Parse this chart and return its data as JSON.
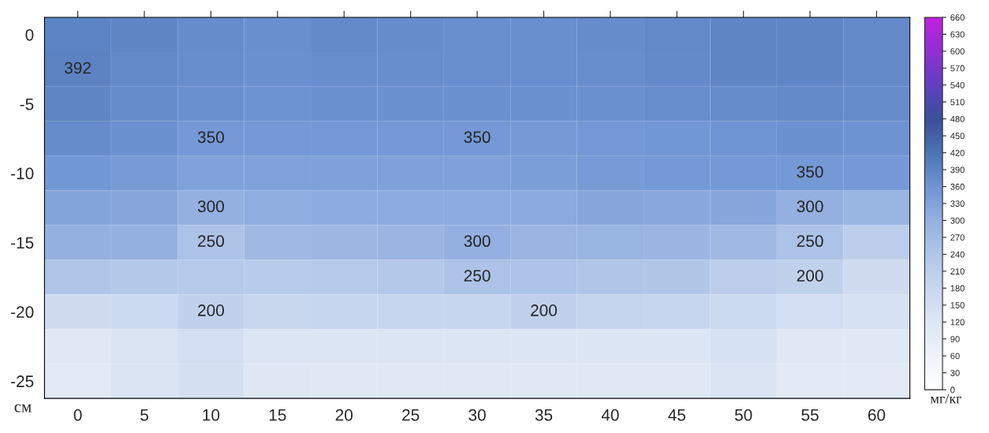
{
  "chart_data": {
    "type": "heatmap",
    "categories": [
      "0",
      "5",
      "10",
      "15",
      "20",
      "25",
      "30",
      "35",
      "40",
      "45",
      "50",
      "55",
      "60"
    ],
    "y_categories": [
      "0",
      null,
      "-5",
      null,
      "-10",
      null,
      "-15",
      null,
      "-20",
      null,
      "-25"
    ],
    "cells": [
      [
        390,
        385,
        375,
        370,
        380,
        375,
        370,
        370,
        375,
        380,
        385,
        385,
        380
      ],
      [
        392,
        380,
        372,
        368,
        372,
        372,
        370,
        370,
        372,
        378,
        385,
        385,
        380
      ],
      [
        385,
        375,
        365,
        362,
        365,
        365,
        365,
        365,
        368,
        372,
        375,
        378,
        375
      ],
      [
        375,
        365,
        350,
        350,
        352,
        350,
        350,
        348,
        352,
        355,
        360,
        365,
        362
      ],
      [
        355,
        345,
        330,
        330,
        335,
        335,
        335,
        340,
        345,
        350,
        350,
        350,
        350
      ],
      [
        325,
        320,
        300,
        305,
        310,
        310,
        310,
        315,
        320,
        318,
        320,
        300,
        290
      ],
      [
        300,
        300,
        250,
        275,
        280,
        285,
        300,
        285,
        290,
        285,
        275,
        250,
        210
      ],
      [
        240,
        230,
        225,
        220,
        225,
        230,
        250,
        245,
        240,
        235,
        210,
        200,
        160
      ],
      [
        160,
        170,
        200,
        180,
        185,
        185,
        185,
        200,
        190,
        185,
        170,
        150,
        140
      ],
      [
        110,
        130,
        150,
        125,
        125,
        125,
        125,
        120,
        120,
        120,
        140,
        110,
        110
      ],
      [
        100,
        130,
        145,
        115,
        110,
        110,
        110,
        110,
        110,
        110,
        130,
        100,
        100
      ]
    ],
    "cell_labels": [
      [
        null,
        null,
        null,
        null,
        null,
        null,
        null,
        null,
        null,
        null,
        null,
        null,
        null
      ],
      [
        "392",
        null,
        null,
        null,
        null,
        null,
        null,
        null,
        null,
        null,
        null,
        null,
        null
      ],
      [
        null,
        null,
        null,
        null,
        null,
        null,
        null,
        null,
        null,
        null,
        null,
        null,
        null
      ],
      [
        null,
        null,
        "350",
        null,
        null,
        null,
        "350",
        null,
        null,
        null,
        null,
        null,
        null
      ],
      [
        null,
        null,
        null,
        null,
        null,
        null,
        null,
        null,
        null,
        null,
        null,
        "350",
        null
      ],
      [
        null,
        null,
        "300",
        null,
        null,
        null,
        null,
        null,
        null,
        null,
        null,
        "300",
        null
      ],
      [
        null,
        null,
        "250",
        null,
        null,
        null,
        "300",
        null,
        null,
        null,
        null,
        "250",
        null
      ],
      [
        null,
        null,
        null,
        null,
        null,
        null,
        "250",
        null,
        null,
        null,
        null,
        "200",
        null
      ],
      [
        null,
        null,
        "200",
        null,
        null,
        null,
        null,
        "200",
        null,
        null,
        null,
        null,
        null
      ],
      [
        null,
        null,
        null,
        null,
        null,
        null,
        null,
        null,
        null,
        null,
        null,
        null,
        null
      ],
      [
        null,
        null,
        null,
        null,
        null,
        null,
        null,
        null,
        null,
        null,
        null,
        null,
        null
      ]
    ],
    "ylabel": "см",
    "clabel": "мг/кг",
    "clim": [
      0,
      660
    ],
    "cticks": [
      0,
      30,
      60,
      90,
      120,
      150,
      180,
      210,
      240,
      270,
      300,
      330,
      360,
      390,
      420,
      450,
      480,
      510,
      540,
      570,
      600,
      630,
      660
    ],
    "colors": [
      "#ffffff",
      "#eef2fa",
      "#dde6f4",
      "#c8d7ee",
      "#b0c5e8",
      "#93b0e0",
      "#6f94d4",
      "#4c74b4",
      "#3a4f9a",
      "#6040c0",
      "#9030d0",
      "#c020e0"
    ],
    "grid": false
  }
}
